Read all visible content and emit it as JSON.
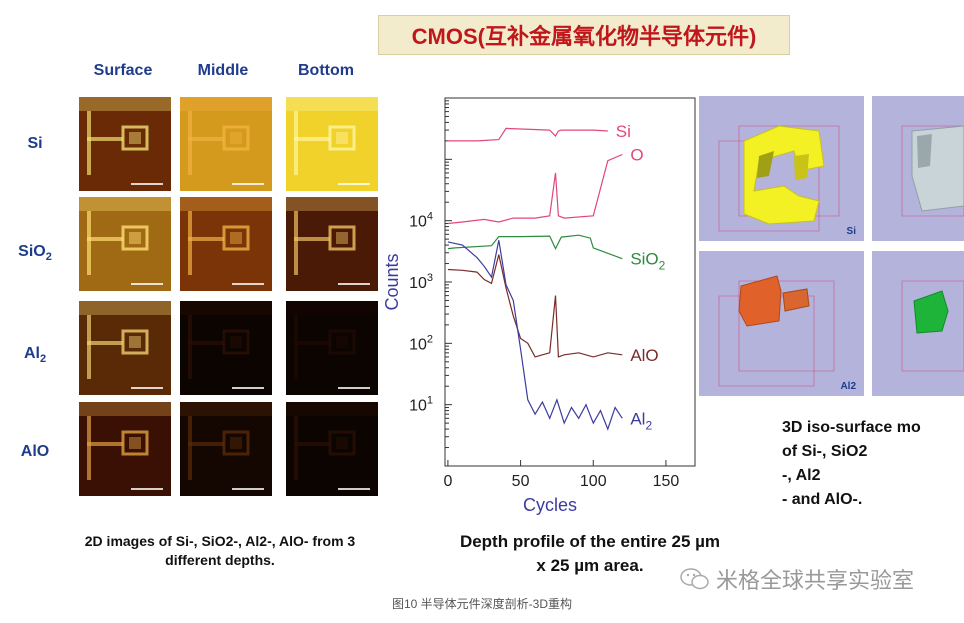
{
  "title": "CMOS(互补金属氧化物半导体元件)",
  "grid": {
    "columns": [
      "Surface",
      "Middle",
      "Bottom"
    ],
    "rows": [
      {
        "base": "Si",
        "sub": ""
      },
      {
        "base": "SiO",
        "sub": "2"
      },
      {
        "base": "Al",
        "sub": "2"
      },
      {
        "base": "AlO",
        "sub": ""
      }
    ],
    "caption_line1": "2D images of Si-, SiO2-, Al2-, AlO- from 3",
    "caption_line2": "different depths."
  },
  "chart_data": {
    "type": "line",
    "ylabel": "Counts",
    "xlabel": "Cycles",
    "xlim": [
      -2,
      170
    ],
    "ylim": [
      1,
      1000000
    ],
    "yscale": "log",
    "x_ticks": [
      0,
      50,
      100,
      150
    ],
    "y_ticks": [
      {
        "value": 10,
        "base": "10",
        "exp": "1"
      },
      {
        "value": 100,
        "base": "10",
        "exp": "2"
      },
      {
        "value": 1000,
        "base": "10",
        "exp": "3"
      },
      {
        "value": 10000,
        "base": "10",
        "exp": "4"
      }
    ],
    "series": [
      {
        "name": "Si",
        "label_base": "Si",
        "label_sub": "",
        "color": "#e0487a",
        "x": [
          0,
          20,
          35,
          40,
          70,
          74,
          76,
          78,
          80,
          100,
          110
        ],
        "y": [
          200000,
          200000,
          210000,
          320000,
          300000,
          240000,
          290000,
          300000,
          300000,
          300000,
          290000
        ]
      },
      {
        "name": "O",
        "label_base": "O",
        "label_sub": "",
        "color": "#e0487a",
        "x": [
          0,
          10,
          25,
          35,
          45,
          60,
          70,
          74,
          76,
          80,
          100,
          110,
          120
        ],
        "y": [
          9000,
          9500,
          10500,
          9500,
          11000,
          11000,
          12000,
          60000,
          12000,
          11000,
          12000,
          95000,
          120000
        ]
      },
      {
        "name": "SiO2",
        "label_base": "SiO",
        "label_sub": "2",
        "color": "#2e8b3e",
        "x": [
          0,
          5,
          30,
          35,
          50,
          70,
          74,
          78,
          90,
          98,
          100,
          120
        ],
        "y": [
          3500,
          3600,
          3900,
          5500,
          5500,
          5600,
          3500,
          5400,
          5800,
          5200,
          3600,
          2400
        ]
      },
      {
        "name": "AlO",
        "label_base": "AlO",
        "label_sub": "",
        "color": "#7a2a28",
        "x": [
          0,
          10,
          20,
          25,
          30,
          35,
          40,
          45,
          50,
          55,
          60,
          65,
          70,
          74,
          76,
          80,
          90,
          100,
          110,
          120
        ],
        "y": [
          1600,
          1550,
          1450,
          1100,
          950,
          2800,
          800,
          280,
          120,
          100,
          60,
          65,
          70,
          600,
          60,
          65,
          70,
          60,
          70,
          65
        ]
      },
      {
        "name": "Al2",
        "label_base": "Al",
        "label_sub": "2",
        "color": "#3c3ca0",
        "x": [
          0,
          10,
          20,
          25,
          30,
          35,
          40,
          45,
          50,
          55,
          60,
          65,
          70,
          75,
          80,
          85,
          90,
          95,
          100,
          105,
          110,
          115,
          120
        ],
        "y": [
          4500,
          4000,
          2500,
          1800,
          1200,
          4800,
          900,
          500,
          80,
          12,
          7,
          11,
          6,
          12,
          5,
          9,
          6,
          10,
          5,
          8,
          4,
          9,
          6
        ]
      }
    ]
  },
  "depth_caption_line1": "Depth profile of the entire 25 µm",
  "depth_caption_line2": "x 25 µm area.",
  "iso": {
    "panel_labels": [
      "Si",
      "",
      "Al2",
      ""
    ],
    "caption_lines": [
      "3D iso-surface mo",
      "of Si-, SiO2",
      "-, Al2",
      "- and AlO-."
    ]
  },
  "footer": "图10 半导体元件深度剖析-3D重构",
  "watermark": "米格全球共享实验室",
  "colors": {
    "title": "#c0161c",
    "header": "#1f3c8c",
    "iso_bg": "#b3b3dc"
  }
}
